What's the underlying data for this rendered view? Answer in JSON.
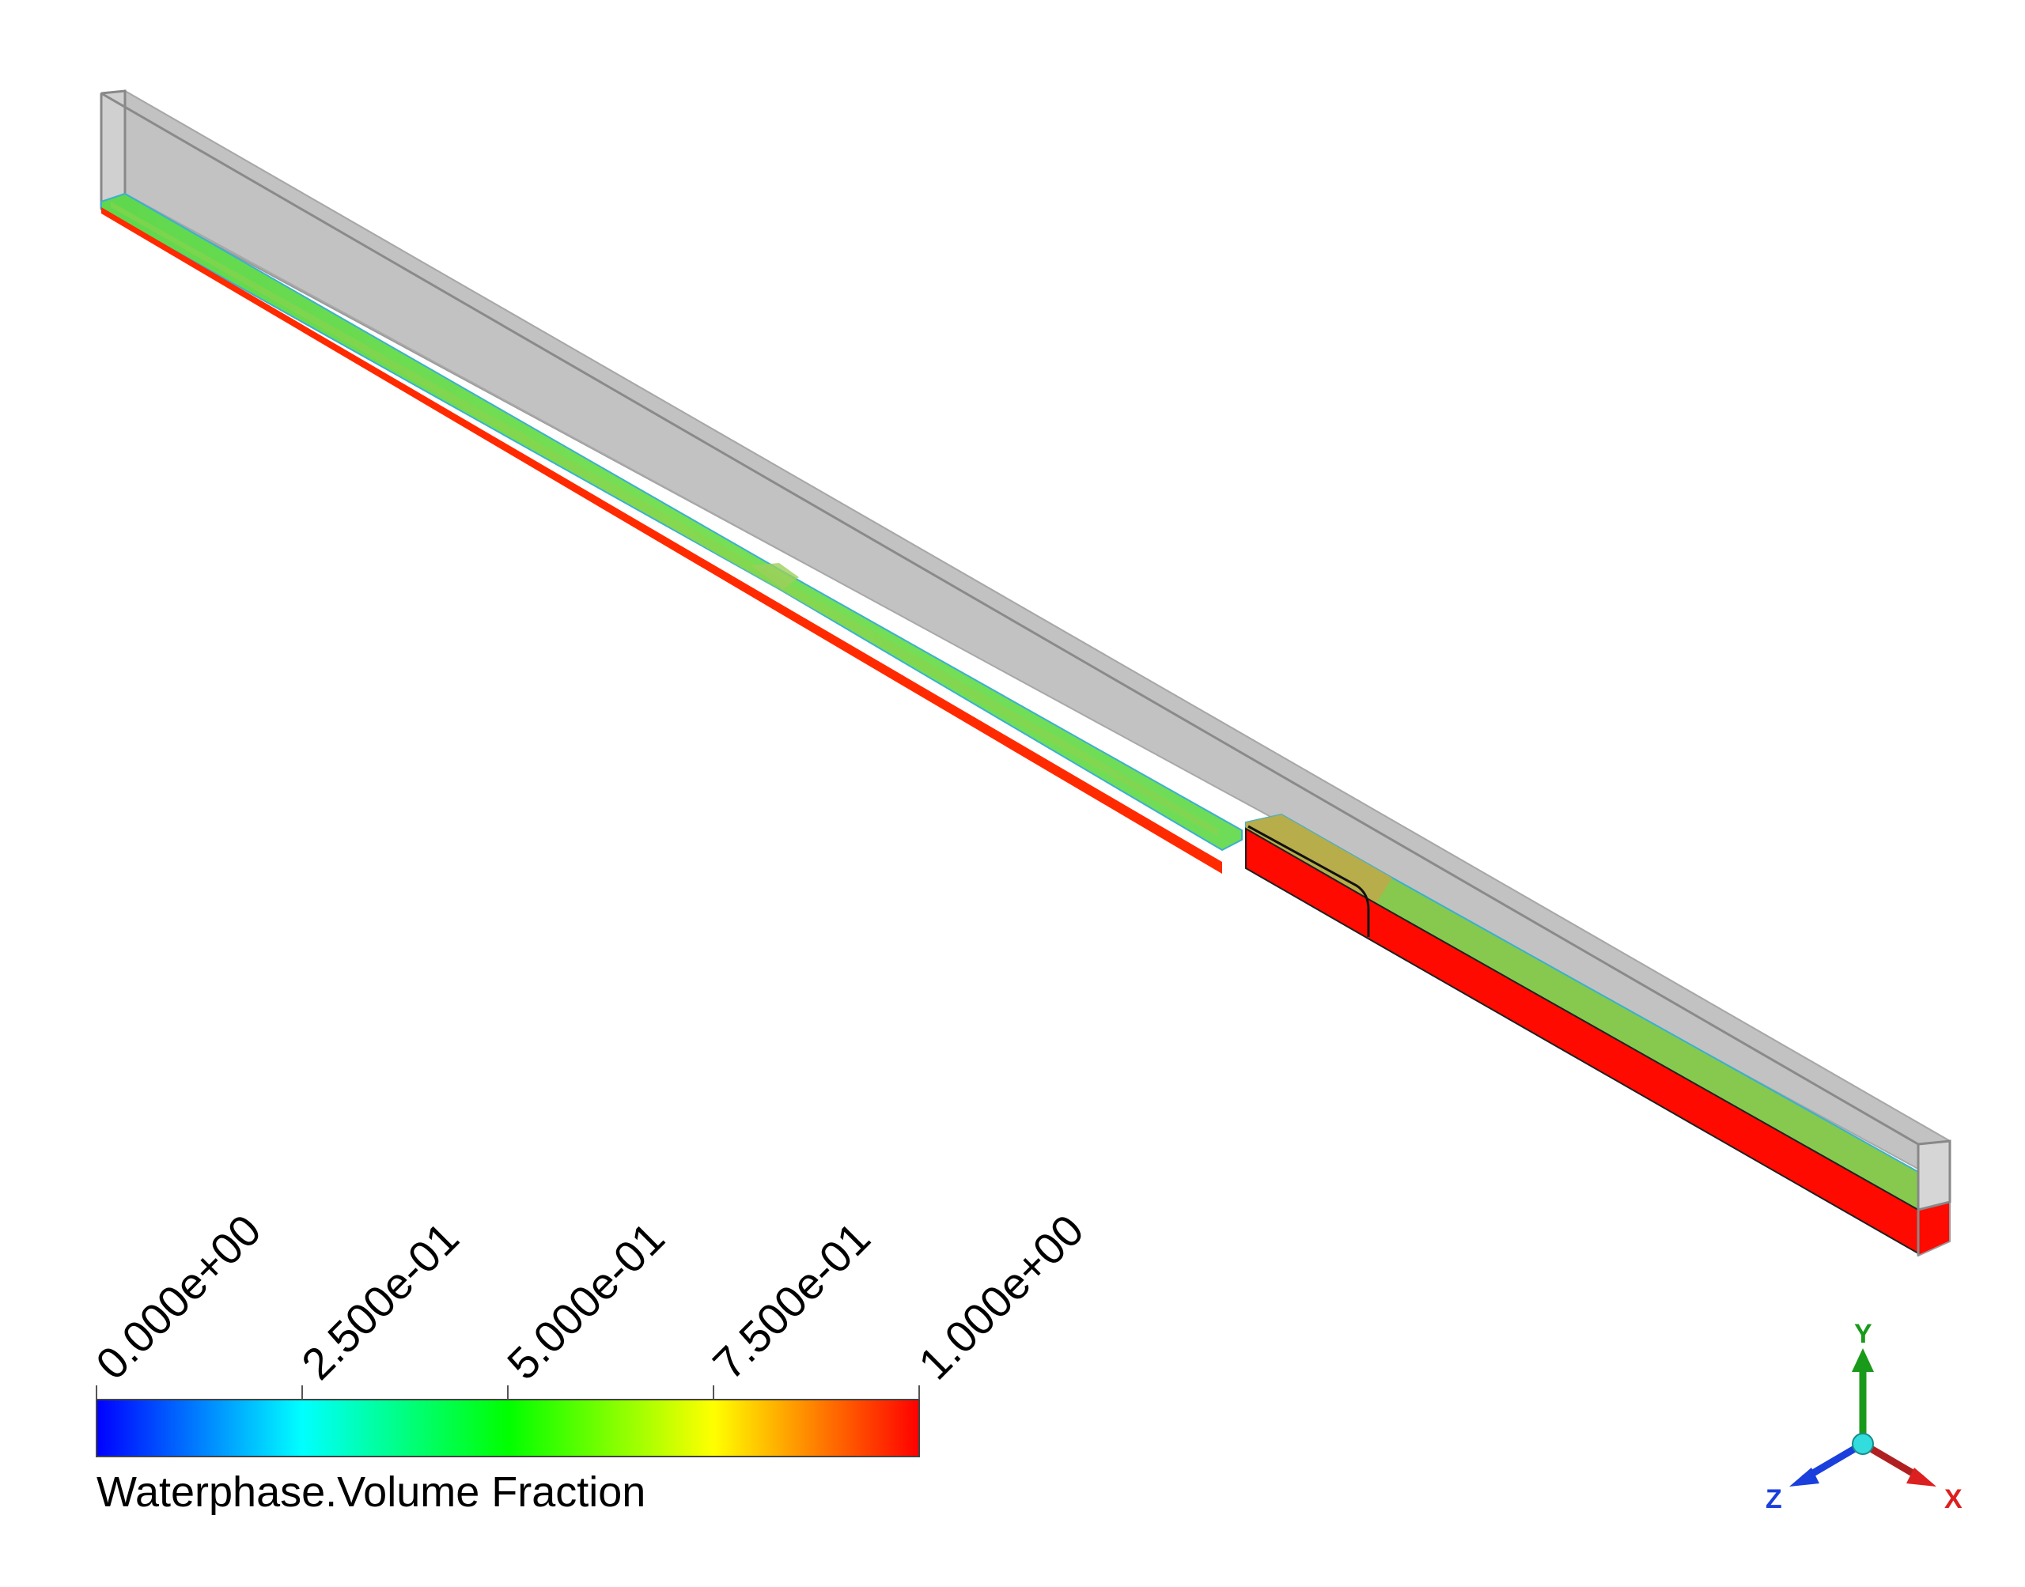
{
  "legend": {
    "title": "Waterphase.Volume Fraction",
    "ticks": [
      "0.000e+00",
      "2.500e-01",
      "5.000e-01",
      "7.500e-01",
      "1.000e+00"
    ],
    "range": [
      0,
      1
    ],
    "colormap": [
      "#0000ff",
      "#00ffff",
      "#00ff00",
      "#ffff00",
      "#ff0000"
    ]
  },
  "axes": {
    "y_label": "Y",
    "z_label": "Z",
    "x_label": "X",
    "y_color": "#1a9a1a",
    "z_color": "#1a3fdc",
    "x_color": "#dc2020",
    "origin_color": "#33dddd"
  },
  "scene": {
    "channel_wall_color": "#c4c4c4",
    "water_surface_color": "#6fe05a",
    "water_body_color": "#ff0a00"
  }
}
